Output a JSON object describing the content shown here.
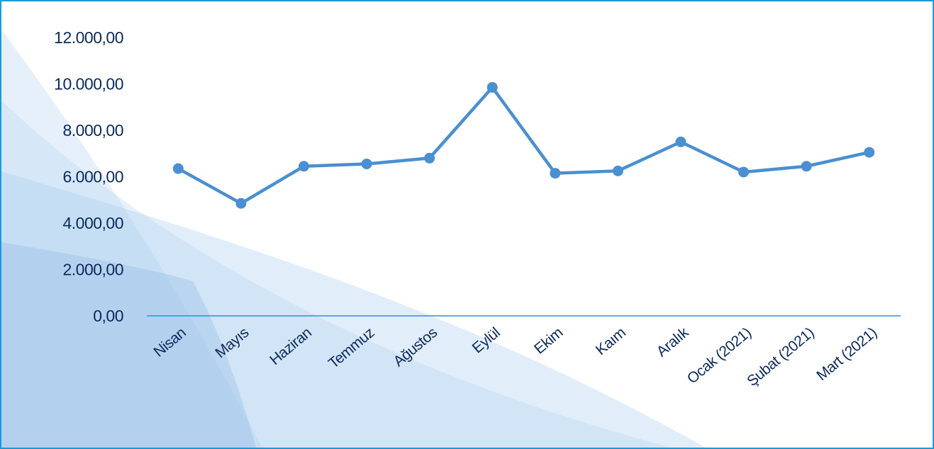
{
  "chart_data": {
    "type": "line",
    "categories": [
      "Nisan",
      "Mayıs",
      "Haziran",
      "Temmuz",
      "Ağustos",
      "Eylül",
      "Ekim",
      "Kaım",
      "Aralık",
      "Ocak (2021)",
      "Şubat (2021)",
      "Mart (2021)"
    ],
    "series": [
      {
        "values": [
          6350,
          4850,
          6450,
          6550,
          6800,
          9850,
          6150,
          6250,
          7500,
          6200,
          6450,
          7050
        ]
      }
    ],
    "ylim": [
      0,
      12000
    ],
    "yticks": [
      "0,00",
      "2.000,00",
      "4.000,00",
      "6.000,00",
      "8.000,00",
      "10.000,00",
      "12.000,00"
    ],
    "grid": false,
    "title": "",
    "xlabel": "",
    "ylabel": ""
  },
  "colors": {
    "line": "#4a8fd1",
    "axis": "#1a9ad6",
    "text": "#0b2a5c",
    "border": "#1a9ad6"
  }
}
